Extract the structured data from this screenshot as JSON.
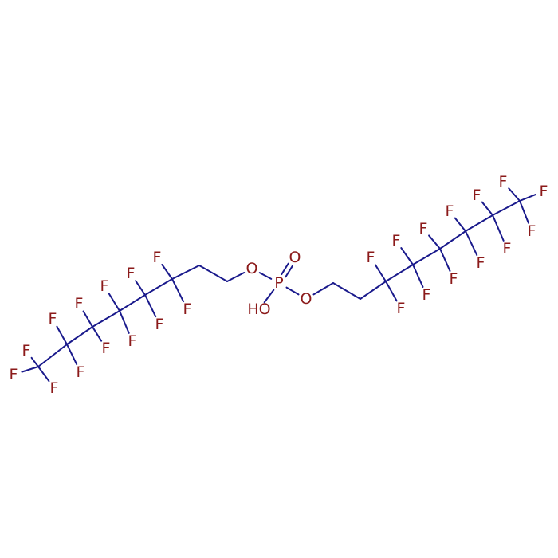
{
  "molecule": {
    "atoms": [
      {
        "label": "F"
      },
      {
        "label": "F"
      },
      {
        "label": "F"
      },
      {
        "label": "F"
      },
      {
        "label": "F"
      },
      {
        "label": "F"
      },
      {
        "label": "F"
      },
      {
        "label": "F"
      },
      {
        "label": "F"
      },
      {
        "label": "F"
      },
      {
        "label": "F"
      },
      {
        "label": "F"
      },
      {
        "label": "F"
      },
      {
        "label": "O"
      },
      {
        "label": "P"
      },
      {
        "label": "O"
      },
      {
        "label": "HO"
      },
      {
        "label": "O"
      },
      {
        "label": "F"
      },
      {
        "label": "F"
      },
      {
        "label": "F"
      },
      {
        "label": "F"
      },
      {
        "label": "F"
      },
      {
        "label": "F"
      },
      {
        "label": "F"
      },
      {
        "label": "F"
      },
      {
        "label": "F"
      },
      {
        "label": "F"
      },
      {
        "label": "F"
      },
      {
        "label": "F"
      },
      {
        "label": "F"
      }
    ]
  }
}
